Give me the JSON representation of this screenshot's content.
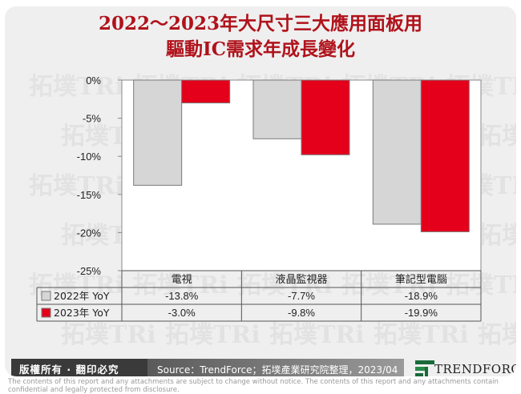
{
  "title_line1": "2022～2023年大尺寸三大應用面板用",
  "title_line2": "驅動IC需求年成長變化",
  "chart_data": {
    "type": "bar",
    "categories": [
      "電視",
      "液晶監視器",
      "筆記型電腦"
    ],
    "series": [
      {
        "name": "2022年 YoY",
        "values": [
          -13.8,
          -7.7,
          -18.9
        ],
        "labels": [
          "-13.8%",
          "-7.7%",
          "-18.9%"
        ],
        "color": "#d6d6d6"
      },
      {
        "name": "2023年 YoY",
        "values": [
          -3.0,
          -9.8,
          -19.9
        ],
        "labels": [
          "-3.0%",
          "-9.8%",
          "-19.9%"
        ],
        "color": "#e4001b"
      }
    ],
    "yticks": [
      0,
      -5,
      -10,
      -15,
      -20,
      -25
    ],
    "ytick_labels": [
      "0%",
      "-5%",
      "-10%",
      "-15%",
      "-20%",
      "-25%"
    ],
    "ylim": [
      -25,
      0
    ],
    "grid": false,
    "legend": "data-table"
  },
  "footer": {
    "rights": "版權所有 · 翻印必究",
    "source": "Source：TrendForce；拓墣產業研究院整理，2023/04",
    "brand": "TRENDFORCE"
  },
  "disclaimer": "The contents of this report and any attachments are subject to change without notice. The contents of this report and any attachments contain confidential and legally protected from disclosure.",
  "watermark_text": "拓墣TRi",
  "colors": {
    "title": "#b0121b",
    "accent": "#e4001b",
    "gray_bar": "#d6d6d6"
  }
}
